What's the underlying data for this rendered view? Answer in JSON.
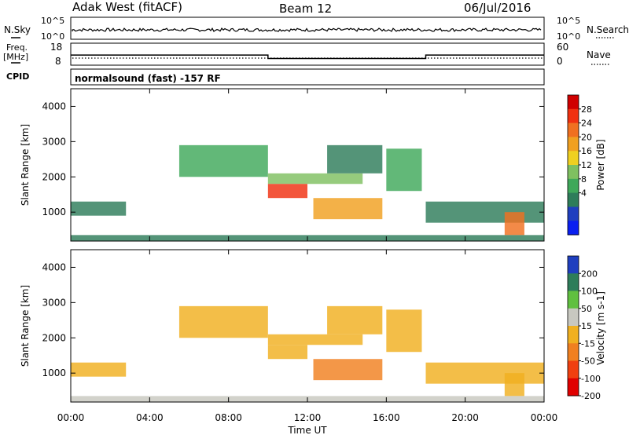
{
  "header": {
    "station": "Adak West (fitACF)",
    "beam": "Beam 12",
    "date": "06/Jul/2016"
  },
  "noise_panel": {
    "left_label": "N.Sky",
    "right_label": "N.Search",
    "ticks_left": [
      "10^5",
      "10^0"
    ],
    "ticks_right": [
      "10^5",
      "10^0"
    ]
  },
  "freq_panel": {
    "left_label_1": "Freq.",
    "left_label_2": "[MHz]",
    "right_label": "Nave",
    "ticks_left": [
      "18",
      "8"
    ],
    "ticks_right": [
      "60",
      "0"
    ]
  },
  "cpid": {
    "label": "CPID",
    "text": "normalsound (fast) -157 RF"
  },
  "power_panel": {
    "ylabel": "Slant Range [km]",
    "yticks": [
      "4000",
      "3000",
      "2000",
      "1000"
    ],
    "colorbar_label": "Power [dB]",
    "colorbar_ticks": [
      "28",
      "24",
      "20",
      "16",
      "12",
      "8",
      "4"
    ],
    "colors": [
      "#0a1ff0",
      "#1f3fbf",
      "#2e7d5a",
      "#3fa85a",
      "#7fc060",
      "#f0d020",
      "#f0a020",
      "#f07020",
      "#f03010",
      "#d00000"
    ]
  },
  "velocity_panel": {
    "ylabel": "Slant Range [km]",
    "yticks": [
      "4000",
      "3000",
      "2000",
      "1000"
    ],
    "colorbar_label": "Velocity [m s-1]",
    "colorbar_ticks": [
      "200",
      "100",
      "50",
      "15",
      "-15",
      "-50",
      "-100",
      "-200"
    ],
    "colors": [
      "#1f3fbf",
      "#2e7d5a",
      "#60c040",
      "#c8c8c0",
      "#f0b020",
      "#f08020",
      "#f04010",
      "#e00000"
    ]
  },
  "xaxis": {
    "label": "Time UT",
    "ticks": [
      "00:00",
      "04:00",
      "08:00",
      "12:00",
      "16:00",
      "20:00",
      "00:00"
    ]
  },
  "chart_data": {
    "type": "heatmap",
    "title": "Adak West (fitACF)  Beam 12  06/Jul/2016",
    "xlabel": "Time UT",
    "ylabel": "Slant Range [km]",
    "xlim_hours": [
      0,
      24
    ],
    "ylim_km": [
      180,
      4500
    ],
    "freq_mhz": {
      "segments": [
        {
          "start": 0,
          "end": 10,
          "value": 12.5
        },
        {
          "start": 10,
          "end": 18,
          "value": 10.5
        },
        {
          "start": 18,
          "end": 24,
          "value": 12.5
        }
      ]
    },
    "power_db_range": [
      0,
      30
    ],
    "velocity_range": [
      -250,
      250
    ],
    "echo_regions": [
      {
        "t0": 0.0,
        "t1": 2.8,
        "r0": 900,
        "r1": 1300,
        "power": 8,
        "vel": 10
      },
      {
        "t0": 5.5,
        "t1": 10.0,
        "r0": 2000,
        "r1": 2900,
        "power": 10,
        "vel": 5
      },
      {
        "t0": 10.0,
        "t1": 14.8,
        "r0": 1800,
        "r1": 2100,
        "power": 14,
        "vel": -5
      },
      {
        "t0": 10.0,
        "t1": 12.0,
        "r0": 1400,
        "r1": 1800,
        "power": 24,
        "vel": -10
      },
      {
        "t0": 12.3,
        "t1": 15.8,
        "r0": 800,
        "r1": 1400,
        "power": 20,
        "vel": -30
      },
      {
        "t0": 13.0,
        "t1": 15.8,
        "r0": 2100,
        "r1": 2900,
        "power": 8,
        "vel": 5
      },
      {
        "t0": 16.0,
        "t1": 17.8,
        "r0": 1600,
        "r1": 2800,
        "power": 9,
        "vel": 0
      },
      {
        "t0": 18.0,
        "t1": 24.0,
        "r0": 700,
        "r1": 1300,
        "power": 8,
        "vel": 5
      },
      {
        "t0": 22.0,
        "t1": 23.0,
        "r0": 350,
        "r1": 1000,
        "power": 22,
        "vel": -5
      },
      {
        "t0": 0.0,
        "t1": 24.0,
        "r0": 180,
        "r1": 350,
        "power": 6,
        "vel": 20
      }
    ]
  }
}
